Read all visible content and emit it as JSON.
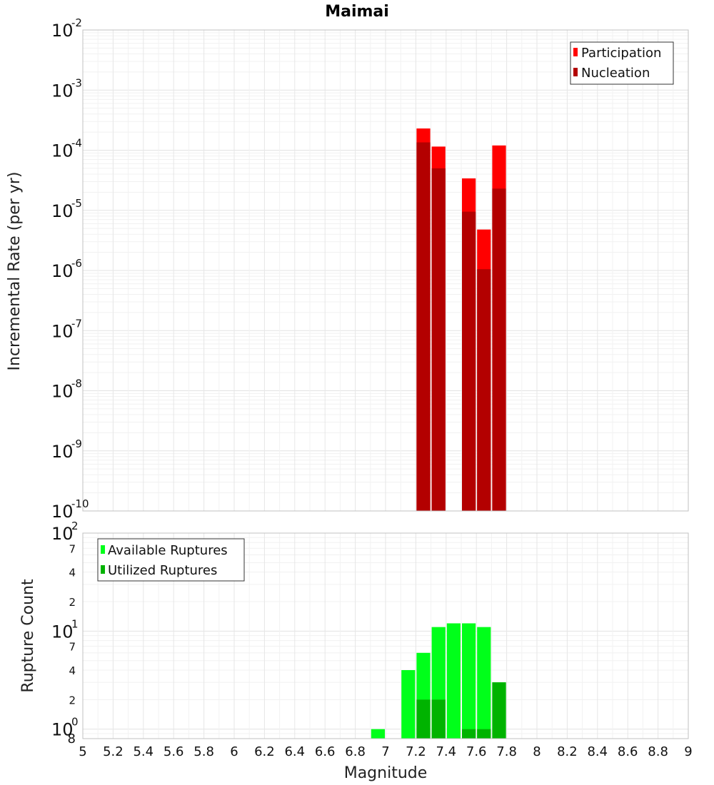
{
  "title": "Maimai",
  "colors": {
    "participation": "#ff0000",
    "nucleation": "#b30000",
    "available": "#00ff1a",
    "utilized": "#00b300",
    "grid": "#e6e6e6",
    "border": "#c0c0c0"
  },
  "chart_data": [
    {
      "type": "bar",
      "title": "Maimai",
      "xlabel": "",
      "ylabel": "Incremental Rate (per yr)",
      "yscale": "log",
      "ylim": [
        1e-10,
        0.01
      ],
      "xlim": [
        5,
        9
      ],
      "grid": true,
      "legend_position": "top-right",
      "y_major_ticks": [
        {
          "base": "10",
          "exp": "-10"
        },
        {
          "base": "10",
          "exp": "-9"
        },
        {
          "base": "10",
          "exp": "-8"
        },
        {
          "base": "10",
          "exp": "-7"
        },
        {
          "base": "10",
          "exp": "-6"
        },
        {
          "base": "10",
          "exp": "-5"
        },
        {
          "base": "10",
          "exp": "-4"
        },
        {
          "base": "10",
          "exp": "-3"
        },
        {
          "base": "10",
          "exp": "-2"
        }
      ],
      "bin_width": 0.1,
      "series": [
        {
          "name": "Participation",
          "color": "#ff0000",
          "x": [
            7.25,
            7.35,
            7.55,
            7.65,
            7.75
          ],
          "values": [
            0.00023,
            0.000115,
            3.4e-05,
            4.8e-06,
            0.00012
          ]
        },
        {
          "name": "Nucleation",
          "color": "#b30000",
          "x": [
            7.25,
            7.35,
            7.55,
            7.65,
            7.75
          ],
          "values": [
            0.000135,
            5e-05,
            9.5e-06,
            1.05e-06,
            2.3e-05
          ]
        }
      ]
    },
    {
      "type": "bar",
      "title": "",
      "xlabel": "Magnitude",
      "ylabel": "Rupture Count",
      "yscale": "log",
      "ylim": [
        0.8,
        100
      ],
      "xlim": [
        5,
        9
      ],
      "grid": true,
      "legend_position": "top-left",
      "x_ticks": [
        "5",
        "5.2",
        "5.4",
        "5.6",
        "5.8",
        "6",
        "6.2",
        "6.4",
        "6.6",
        "6.8",
        "7",
        "7.2",
        "7.4",
        "7.6",
        "7.8",
        "8",
        "8.2",
        "8.4",
        "8.6",
        "8.8",
        "9"
      ],
      "y_major_ticks": [
        {
          "value": 1,
          "base": "10",
          "exp": "0"
        },
        {
          "value": 10,
          "base": "10",
          "exp": "1"
        },
        {
          "value": 100,
          "base": "10",
          "exp": "2"
        }
      ],
      "y_minor_ticks": [
        {
          "value": 0.8,
          "label": "8"
        },
        {
          "value": 2,
          "label": "2"
        },
        {
          "value": 4,
          "label": "4"
        },
        {
          "value": 7,
          "label": "7"
        },
        {
          "value": 20,
          "label": "2"
        },
        {
          "value": 40,
          "label": "4"
        },
        {
          "value": 70,
          "label": "7"
        }
      ],
      "bin_width": 0.1,
      "series": [
        {
          "name": "Available Ruptures",
          "color": "#00ff1a",
          "x": [
            6.95,
            7.15,
            7.25,
            7.35,
            7.45,
            7.55,
            7.65,
            7.75
          ],
          "values": [
            1,
            4,
            6,
            11,
            12,
            12,
            11,
            3
          ]
        },
        {
          "name": "Utilized Ruptures",
          "color": "#00b300",
          "x": [
            7.25,
            7.35,
            7.55,
            7.65,
            7.75
          ],
          "values": [
            2,
            2,
            1,
            1,
            3
          ]
        }
      ]
    }
  ]
}
